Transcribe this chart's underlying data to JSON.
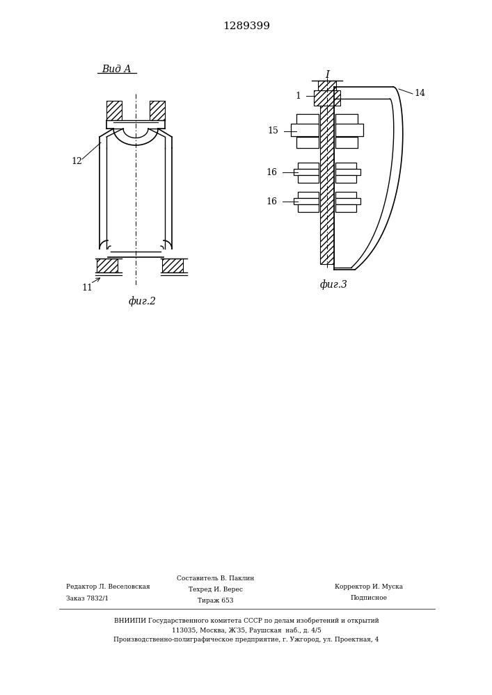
{
  "title": "1289399",
  "background_color": "#ffffff",
  "fig_width": 7.07,
  "fig_height": 10.0,
  "label_vid_a": "Вид А",
  "label_fig2": "фиг.2",
  "label_fig3": "фиг.3",
  "label_I": "I",
  "label_11": "11",
  "label_12": "12",
  "label_14": "14",
  "label_15": "15",
  "label_16a": "16",
  "label_16b": "16",
  "label_1": "1"
}
